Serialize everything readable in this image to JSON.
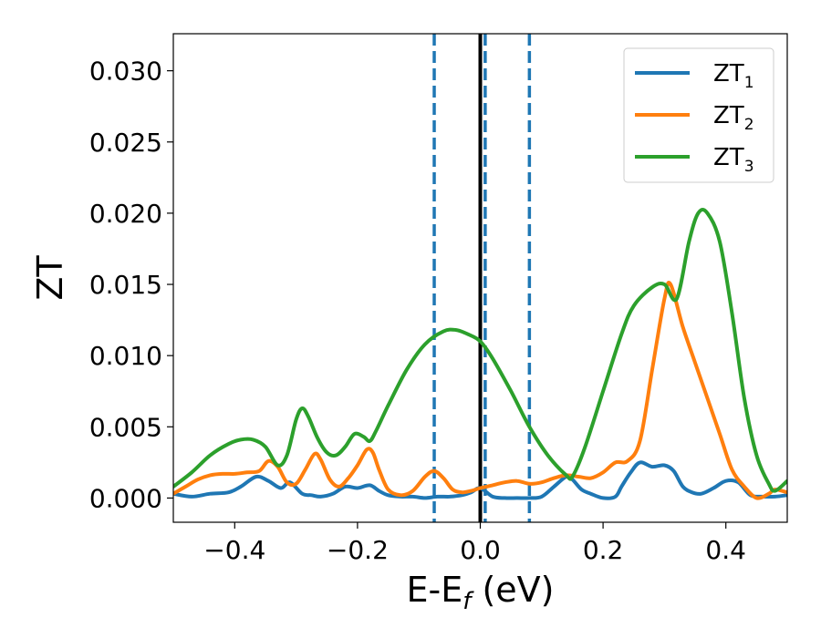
{
  "chart_data": {
    "type": "line",
    "xlabel_main": "E-E",
    "xlabel_sub": "f",
    "xlabel_unit": " (eV)",
    "ylabel": "ZT",
    "xlim": [
      -0.5,
      0.5
    ],
    "ylim": [
      -0.0017,
      0.0326
    ],
    "xticks": [
      -0.4,
      -0.2,
      0.0,
      0.2,
      0.4
    ],
    "xtick_labels": [
      "−0.4",
      "−0.2",
      "0.0",
      "0.2",
      "0.4"
    ],
    "yticks": [
      0.0,
      0.005,
      0.01,
      0.015,
      0.02,
      0.025,
      0.03
    ],
    "ytick_labels": [
      "0.000",
      "0.005",
      "0.010",
      "0.015",
      "0.020",
      "0.025",
      "0.030"
    ],
    "grid": false,
    "legend_position": "top-right",
    "vertical_lines": [
      {
        "x": 0.0,
        "style": "solid",
        "color": "#000000"
      },
      {
        "x": -0.075,
        "style": "dashed",
        "color": "#1f77b4"
      },
      {
        "x": 0.008,
        "style": "dashed",
        "color": "#1f77b4"
      },
      {
        "x": 0.08,
        "style": "dashed",
        "color": "#1f77b4"
      }
    ],
    "series": [
      {
        "name_main": "ZT",
        "name_sub": "1",
        "color": "#1f77b4",
        "x": [
          -0.5,
          -0.47,
          -0.44,
          -0.41,
          -0.39,
          -0.365,
          -0.345,
          -0.325,
          -0.31,
          -0.29,
          -0.275,
          -0.26,
          -0.24,
          -0.22,
          -0.2,
          -0.18,
          -0.165,
          -0.15,
          -0.13,
          -0.11,
          -0.09,
          -0.07,
          -0.05,
          -0.03,
          -0.015,
          0.0,
          0.02,
          0.04,
          0.06,
          0.08,
          0.1,
          0.12,
          0.14,
          0.15,
          0.165,
          0.18,
          0.2,
          0.22,
          0.23,
          0.245,
          0.26,
          0.28,
          0.3,
          0.315,
          0.33,
          0.345,
          0.36,
          0.38,
          0.4,
          0.42,
          0.44,
          0.46,
          0.48,
          0.5
        ],
        "y": [
          0.0003,
          0.0001,
          0.0003,
          0.0004,
          0.0008,
          0.0015,
          0.0012,
          0.0007,
          0.0011,
          0.0003,
          0.0002,
          0.0001,
          0.0003,
          0.0008,
          0.0007,
          0.0009,
          0.0005,
          0.0002,
          0.0001,
          0.0001,
          0.0,
          0.0001,
          0.0001,
          0.0002,
          0.0004,
          0.0007,
          0.0001,
          0.0,
          0.0,
          0.0,
          0.0001,
          0.0008,
          0.0015,
          0.0013,
          0.0006,
          0.0003,
          0.0,
          0.0001,
          0.0008,
          0.0018,
          0.0025,
          0.0022,
          0.0023,
          0.0019,
          0.0008,
          0.0004,
          0.0003,
          0.0007,
          0.0012,
          0.0011,
          0.0002,
          0.0001,
          0.0001,
          0.0002
        ]
      },
      {
        "name_main": "ZT",
        "name_sub": "2",
        "color": "#ff7f0e",
        "x": [
          -0.5,
          -0.48,
          -0.46,
          -0.44,
          -0.42,
          -0.4,
          -0.38,
          -0.36,
          -0.345,
          -0.33,
          -0.315,
          -0.3,
          -0.285,
          -0.27,
          -0.26,
          -0.245,
          -0.23,
          -0.215,
          -0.2,
          -0.185,
          -0.175,
          -0.165,
          -0.15,
          -0.13,
          -0.11,
          -0.09,
          -0.075,
          -0.06,
          -0.045,
          -0.03,
          -0.015,
          0.0,
          0.02,
          0.04,
          0.06,
          0.08,
          0.1,
          0.12,
          0.14,
          0.16,
          0.18,
          0.2,
          0.22,
          0.24,
          0.26,
          0.28,
          0.3,
          0.31,
          0.33,
          0.35,
          0.37,
          0.39,
          0.41,
          0.43,
          0.45,
          0.47,
          0.48,
          0.5
        ],
        "y": [
          0.0003,
          0.0008,
          0.0013,
          0.0016,
          0.0017,
          0.0017,
          0.0018,
          0.0019,
          0.0026,
          0.0022,
          0.0011,
          0.001,
          0.002,
          0.0031,
          0.0027,
          0.0013,
          0.0008,
          0.0014,
          0.0023,
          0.0034,
          0.0032,
          0.002,
          0.0006,
          0.0002,
          0.0005,
          0.0015,
          0.0019,
          0.0014,
          0.0006,
          0.0004,
          0.0005,
          0.0007,
          0.0009,
          0.0011,
          0.0012,
          0.001,
          0.0011,
          0.0014,
          0.0016,
          0.0015,
          0.0014,
          0.0018,
          0.0025,
          0.0026,
          0.004,
          0.009,
          0.014,
          0.015,
          0.012,
          0.0095,
          0.007,
          0.0045,
          0.002,
          0.0008,
          0.0,
          0.0003,
          0.0006,
          0.0004
        ]
      },
      {
        "name_main": "ZT",
        "name_sub": "3",
        "color": "#2ca02c",
        "x": [
          -0.5,
          -0.47,
          -0.44,
          -0.41,
          -0.39,
          -0.37,
          -0.35,
          -0.33,
          -0.315,
          -0.3,
          -0.29,
          -0.28,
          -0.265,
          -0.25,
          -0.235,
          -0.22,
          -0.205,
          -0.19,
          -0.18,
          -0.17,
          -0.15,
          -0.12,
          -0.09,
          -0.06,
          -0.04,
          -0.02,
          0.0,
          0.02,
          0.05,
          0.08,
          0.11,
          0.14,
          0.15,
          0.17,
          0.2,
          0.23,
          0.25,
          0.28,
          0.3,
          0.32,
          0.34,
          0.355,
          0.37,
          0.39,
          0.41,
          0.43,
          0.45,
          0.47,
          0.48,
          0.5
        ],
        "y": [
          0.0008,
          0.0018,
          0.003,
          0.0038,
          0.0041,
          0.0041,
          0.0036,
          0.0023,
          0.003,
          0.0055,
          0.0063,
          0.0057,
          0.0042,
          0.0032,
          0.003,
          0.0036,
          0.0045,
          0.0043,
          0.004,
          0.0047,
          0.0065,
          0.009,
          0.0108,
          0.0117,
          0.0118,
          0.0115,
          0.011,
          0.0098,
          0.0075,
          0.005,
          0.003,
          0.0016,
          0.0015,
          0.0035,
          0.0075,
          0.0115,
          0.0135,
          0.0148,
          0.015,
          0.014,
          0.018,
          0.02,
          0.02,
          0.018,
          0.013,
          0.007,
          0.003,
          0.001,
          0.0005,
          0.0012
        ]
      }
    ]
  }
}
